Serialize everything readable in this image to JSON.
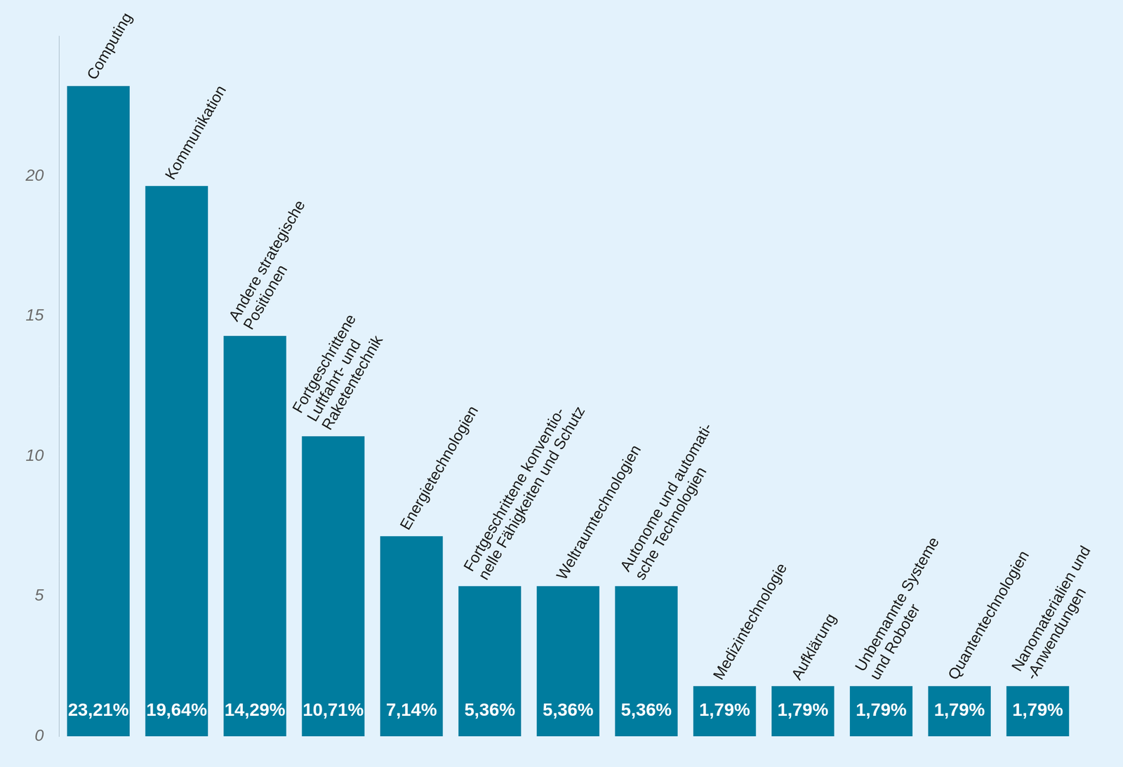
{
  "chart_data": {
    "type": "bar",
    "categories": [
      [
        "Computing"
      ],
      [
        "Kommunikation"
      ],
      [
        "Andere strategische",
        "Positionen"
      ],
      [
        "Fortgeschrittene",
        "Luftfahrt- und",
        "Raketentechnik"
      ],
      [
        "Energietechnologien"
      ],
      [
        "Fortgeschrittene konventio-",
        "nelle Fähigkeiten und Schutz"
      ],
      [
        "Weltraumtechnologien"
      ],
      [
        "Autonome und automati-",
        "sche Technologien"
      ],
      [
        "Medizintechnologie"
      ],
      [
        "Aufklärung"
      ],
      [
        "Unbemannte Systeme",
        "und Roboter"
      ],
      [
        "Quantentechnologien"
      ],
      [
        "Nanomaterialien und",
        "-Anwendungen"
      ]
    ],
    "values": [
      23.21,
      19.64,
      14.29,
      10.71,
      7.14,
      5.36,
      5.36,
      5.36,
      1.79,
      1.79,
      1.79,
      1.79,
      1.79
    ],
    "value_labels": [
      "23,21%",
      "19,64%",
      "14,29%",
      "10,71%",
      "7,14%",
      "5,36%",
      "5,36%",
      "5,36%",
      "1,79%",
      "1,79%",
      "1,79%",
      "1,79%",
      "1,79%"
    ],
    "color": "#007c9e",
    "ylim": [
      0,
      25
    ],
    "yticks": [
      0,
      5,
      10,
      15,
      20
    ],
    "grid": false,
    "data_labels": true,
    "tick_labels": "y"
  }
}
